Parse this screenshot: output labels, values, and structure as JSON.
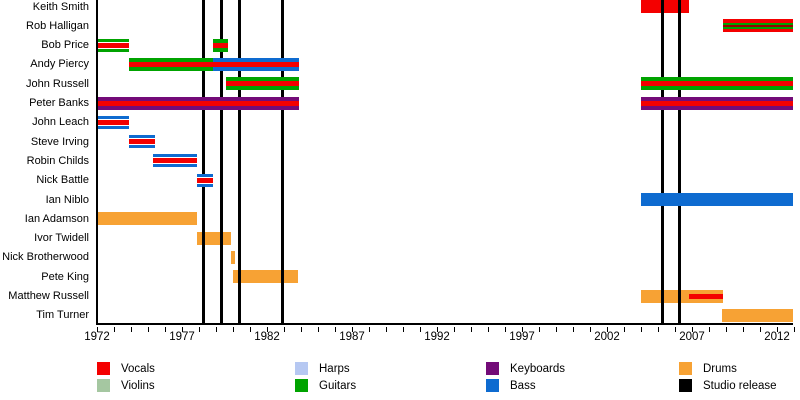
{
  "chart_data": {
    "type": "timeline",
    "title": "",
    "x_axis": {
      "min_year": 1972,
      "max_year": 2013,
      "major_tick_labels": [
        "1972",
        "1977",
        "1982",
        "1987",
        "1992",
        "1997",
        "2002",
        "2007",
        "2012"
      ],
      "minor_tick_every_years": 1,
      "major_label_every_years": 5
    },
    "members": [
      {
        "name": "Keith Smith",
        "bars": [
          {
            "start": 2004.0,
            "end": 2006.8,
            "instrument": "vocals"
          }
        ]
      },
      {
        "name": "Rob Halligan",
        "bars": [
          {
            "start": 2008.8,
            "end": 2012.95,
            "instrument": "vocals",
            "secondary": "guitars",
            "style": "double"
          }
        ]
      },
      {
        "name": "Bob Price",
        "bars": [
          {
            "start": 1972.05,
            "end": 1973.9,
            "instrument": "guitars",
            "secondary": "vocals",
            "style": "gap"
          },
          {
            "start": 1978.85,
            "end": 1979.7,
            "instrument": "guitars",
            "secondary": "vocals"
          }
        ]
      },
      {
        "name": "Andy Piercy",
        "bars": [
          {
            "start": 1973.9,
            "end": 1978.8,
            "instrument": "guitars",
            "secondary": "vocals"
          },
          {
            "start": 1978.8,
            "end": 1983.9,
            "instrument": "bass",
            "secondary": "vocals"
          }
        ]
      },
      {
        "name": "John Russell",
        "bars": [
          {
            "start": 1979.6,
            "end": 1983.9,
            "instrument": "guitars",
            "secondary": "vocals"
          },
          {
            "start": 2004.0,
            "end": 2012.95,
            "instrument": "guitars",
            "secondary": "vocals"
          }
        ]
      },
      {
        "name": "Peter Banks",
        "bars": [
          {
            "start": 1972.05,
            "end": 1983.9,
            "instrument": "keyboards",
            "secondary": "vocals"
          },
          {
            "start": 2004.0,
            "end": 2012.95,
            "instrument": "keyboards",
            "secondary": "vocals"
          }
        ]
      },
      {
        "name": "John Leach",
        "bars": [
          {
            "start": 1972.05,
            "end": 1973.9,
            "instrument": "bass",
            "secondary": "vocals",
            "style": "gap"
          }
        ]
      },
      {
        "name": "Steve Irving",
        "bars": [
          {
            "start": 1973.9,
            "end": 1975.4,
            "instrument": "bass",
            "secondary": "vocals",
            "style": "gap"
          }
        ]
      },
      {
        "name": "Robin Childs",
        "bars": [
          {
            "start": 1975.3,
            "end": 1977.9,
            "instrument": "bass",
            "secondary": "vocals",
            "style": "gap"
          }
        ]
      },
      {
        "name": "Nick Battle",
        "bars": [
          {
            "start": 1977.9,
            "end": 1978.8,
            "instrument": "bass",
            "secondary": "vocals",
            "style": "gap"
          }
        ]
      },
      {
        "name": "Ian Niblo",
        "bars": [
          {
            "start": 2004.0,
            "end": 2012.95,
            "instrument": "bass"
          }
        ]
      },
      {
        "name": "Ian Adamson",
        "bars": [
          {
            "start": 1972.05,
            "end": 1977.9,
            "instrument": "drums"
          }
        ]
      },
      {
        "name": "Ivor Twidell",
        "bars": [
          {
            "start": 1977.9,
            "end": 1979.9,
            "instrument": "drums"
          }
        ]
      },
      {
        "name": "Nick Brotherwood",
        "bars": [
          {
            "start": 1979.9,
            "end": 1980.1,
            "instrument": "drums"
          }
        ]
      },
      {
        "name": "Pete King",
        "bars": [
          {
            "start": 1980.0,
            "end": 1983.8,
            "instrument": "drums"
          }
        ]
      },
      {
        "name": "Matthew Russell",
        "bars": [
          {
            "start": 2004.0,
            "end": 2008.8,
            "instrument": "drums",
            "secondary": "vocals",
            "secondary_start": 2006.8,
            "secondary_end": 2008.8
          }
        ]
      },
      {
        "name": "Tim Turner",
        "bars": [
          {
            "start": 2008.75,
            "end": 2012.95,
            "instrument": "drums"
          }
        ]
      }
    ],
    "studio_release_years": [
      1978.25,
      1979.35,
      1980.4,
      1982.9,
      2005.25,
      2006.25
    ]
  },
  "colors": {
    "vocals": "#F40000",
    "violins": "#A5C7A1",
    "harps": "#B6C8F2",
    "guitars": "#00A300",
    "keyboards": "#730B78",
    "bass": "#0E6BD0",
    "drums": "#F7A234",
    "release": "#000000",
    "stripe_dark": "#9B0000"
  },
  "legend": {
    "columns": [
      [
        {
          "label": "Vocals",
          "key": "vocals"
        },
        {
          "label": "Violins",
          "key": "violins"
        }
      ],
      [
        {
          "label": "Harps",
          "key": "harps"
        },
        {
          "label": "Guitars",
          "key": "guitars"
        }
      ],
      [
        {
          "label": "Keyboards",
          "key": "keyboards"
        },
        {
          "label": "Bass",
          "key": "bass"
        }
      ],
      [
        {
          "label": "Drums",
          "key": "drums"
        },
        {
          "label": "Studio release",
          "key": "release"
        }
      ]
    ]
  }
}
